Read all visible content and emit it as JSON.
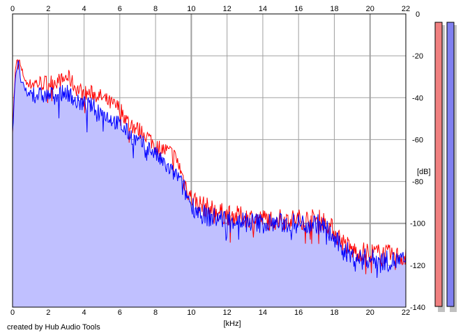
{
  "chart_data": {
    "type": "area",
    "title": "",
    "credit": "created by Hub Audio Tools",
    "xlabel": "[kHz]",
    "ylabel": "[dB]",
    "xlim": [
      0,
      22
    ],
    "ylim": [
      -140,
      0
    ],
    "x_ticks": [
      "0",
      "2",
      "4",
      "6",
      "8",
      "10",
      "12",
      "14",
      "16",
      "18",
      "20",
      "22"
    ],
    "y_ticks": [
      "0",
      "-20",
      "-40",
      "-60",
      "-80",
      "-100",
      "-120",
      "-140"
    ],
    "grid": true,
    "series": [
      {
        "color": "#ff0000",
        "x": [
          0,
          0.15,
          0.3,
          0.5,
          0.8,
          1.2,
          1.6,
          2.0,
          2.4,
          2.8,
          3.0,
          3.2,
          3.5,
          4.0,
          4.5,
          5.0,
          5.5,
          6.0,
          6.5,
          7.0,
          7.5,
          8.0,
          8.5,
          9.0,
          9.3,
          9.6,
          10.0,
          10.5,
          11.0,
          12.0,
          13.0,
          14.0,
          15.0,
          16.0,
          17.0,
          17.5,
          18.0,
          18.5,
          19.0,
          20.0,
          21.0,
          22.0
        ],
        "y": [
          -55,
          -28,
          -20,
          -27,
          -33,
          -33,
          -33,
          -33,
          -32,
          -32,
          -30,
          -31,
          -35,
          -38,
          -38,
          -40,
          -43,
          -45,
          -52,
          -55,
          -58,
          -63,
          -65,
          -67,
          -72,
          -80,
          -88,
          -91,
          -93,
          -96,
          -97,
          -98,
          -98,
          -98,
          -98,
          -99,
          -104,
          -109,
          -113,
          -114,
          -115,
          -116
        ]
      },
      {
        "color": "#0000ff",
        "x": [
          0,
          0.15,
          0.3,
          0.5,
          0.8,
          1.2,
          1.6,
          2.0,
          2.4,
          2.8,
          3.0,
          3.2,
          3.5,
          4.0,
          4.5,
          5.0,
          5.5,
          6.0,
          6.5,
          7.0,
          7.5,
          8.0,
          8.5,
          9.0,
          9.3,
          9.6,
          10.0,
          10.5,
          11.0,
          12.0,
          13.0,
          14.0,
          15.0,
          16.0,
          17.0,
          17.5,
          18.0,
          18.5,
          19.0,
          20.0,
          21.0,
          22.0
        ],
        "y": [
          -57,
          -30,
          -23,
          -33,
          -38,
          -38,
          -39,
          -39,
          -38,
          -38,
          -37,
          -38,
          -42,
          -43,
          -44,
          -47,
          -50,
          -53,
          -57,
          -61,
          -63,
          -67,
          -72,
          -76,
          -78,
          -84,
          -91,
          -95,
          -97,
          -98,
          -99,
          -100,
          -100,
          -100,
          -100,
          -102,
          -108,
          -112,
          -116,
          -117,
          -118,
          -118
        ]
      }
    ],
    "fill_color": "#c0c0ff",
    "level_meters": [
      {
        "fill": "#f08080",
        "level": 1.0
      },
      {
        "fill": "#8080f0",
        "level": 1.0
      }
    ]
  }
}
